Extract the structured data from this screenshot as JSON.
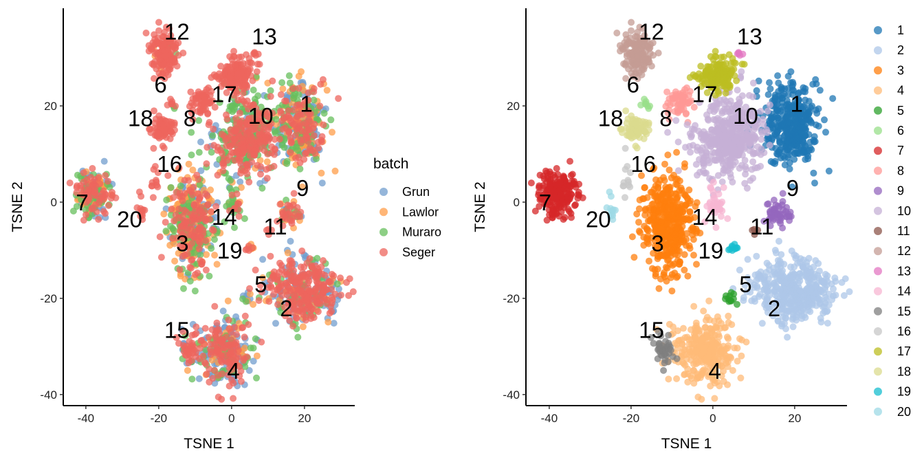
{
  "chart_data": [
    {
      "type": "scatter",
      "title": "",
      "xlabel": "TSNE 1",
      "ylabel": "TSNE 2",
      "xlim": [
        -46.2,
        33.8
      ],
      "ylim": [
        -42.3,
        40.3
      ],
      "xticks": [
        -40,
        -20,
        0,
        20
      ],
      "yticks": [
        -40,
        -20,
        0,
        20
      ],
      "grid": false,
      "color_by": "batch",
      "legend": {
        "title": "batch",
        "placement": "right",
        "entries": [
          "Grun",
          "Lawlor",
          "Muraro",
          "Seger"
        ]
      }
    },
    {
      "type": "scatter",
      "title": "",
      "xlabel": "TSNE 1",
      "ylabel": "TSNE 2",
      "xlim": [
        -45.7,
        32.8
      ],
      "ylim": [
        -42.3,
        40.3
      ],
      "xticks": [
        -40,
        -20,
        0,
        20
      ],
      "yticks": [
        -40,
        -20,
        0,
        20
      ],
      "grid": false,
      "color_by": "cluster",
      "legend": {
        "title": "",
        "placement": "right",
        "entries": [
          "1",
          "2",
          "3",
          "4",
          "5",
          "6",
          "7",
          "8",
          "9",
          "10",
          "11",
          "12",
          "13",
          "14",
          "15",
          "16",
          "17",
          "18",
          "19",
          "20"
        ]
      }
    }
  ],
  "batch_colors": {
    "Grun": "#729ece",
    "Lawlor": "#ff9e4a",
    "Muraro": "#67bf5c",
    "Seger": "#ed665d"
  },
  "cluster_colors": [
    "#1f77b4",
    "#aec7e8",
    "#ff7f0e",
    "#ffbb78",
    "#2ca02c",
    "#98df8a",
    "#d62728",
    "#ff9896",
    "#9467bd",
    "#c5b0d5",
    "#8c564b",
    "#c49c94",
    "#e377c2",
    "#f7b6d2",
    "#7f7f7f",
    "#c7c7c7",
    "#bcbd22",
    "#dbdb8d",
    "#17becf",
    "#9edae5"
  ],
  "clusters": [
    {
      "id": "1",
      "center": [
        19,
        16
      ],
      "sd": [
        3.6,
        4.2
      ],
      "n": 380,
      "batch_weights": [
        0.3,
        0.25,
        0.2,
        0.25
      ],
      "label_pos": [
        20.5,
        20.5
      ]
    },
    {
      "id": "2",
      "center": [
        20,
        -18.5
      ],
      "sd": [
        5,
        3.2
      ],
      "n": 420,
      "batch_weights": [
        0.3,
        0.08,
        0.12,
        0.5
      ],
      "label_pos": [
        15,
        -22
      ]
    },
    {
      "id": "3",
      "center": [
        -11,
        -4.5
      ],
      "sd": [
        3.2,
        5
      ],
      "n": 420,
      "batch_weights": [
        0.12,
        0.4,
        0.2,
        0.28
      ],
      "label_pos": [
        -13.5,
        -8.5
      ]
    },
    {
      "id": "4",
      "center": [
        -1.5,
        -31
      ],
      "sd": [
        4,
        3.2
      ],
      "n": 300,
      "batch_weights": [
        0.3,
        0.12,
        0.13,
        0.45
      ],
      "label_pos": [
        0.5,
        -35
      ]
    },
    {
      "id": "5",
      "center": [
        4.5,
        -20
      ],
      "sd": [
        1,
        0.8
      ],
      "n": 12,
      "batch_weights": [
        0.5,
        0.1,
        0.4,
        0
      ],
      "label_pos": [
        8,
        -17
      ]
    },
    {
      "id": "6",
      "center": [
        -16,
        20.6
      ],
      "sd": [
        0.6,
        0.5
      ],
      "n": 8,
      "batch_weights": [
        0,
        0,
        0.1,
        0.9
      ],
      "label_pos": [
        -19.5,
        24.5
      ]
    },
    {
      "id": "7",
      "center": [
        -38,
        2
      ],
      "sd": [
        2.4,
        2.4
      ],
      "n": 200,
      "batch_weights": [
        0.25,
        0.25,
        0.15,
        0.35
      ],
      "label_pos": [
        -41,
        0
      ]
    },
    {
      "id": "8",
      "center": [
        -8,
        20.5
      ],
      "sd": [
        1.8,
        1.5
      ],
      "n": 60,
      "batch_weights": [
        0,
        0,
        0,
        1
      ],
      "label_pos": [
        -11.5,
        17.5
      ]
    },
    {
      "id": "9",
      "center": [
        16,
        -2.5
      ],
      "sd": [
        1.5,
        1.5
      ],
      "n": 50,
      "batch_weights": [
        0.1,
        0.1,
        0.15,
        0.65
      ],
      "label_pos": [
        19.5,
        3
      ]
    },
    {
      "id": "10",
      "center": [
        4,
        14
      ],
      "sd": [
        4.2,
        4.6
      ],
      "n": 450,
      "batch_weights": [
        0.12,
        0.05,
        0.4,
        0.43
      ],
      "label_pos": [
        8,
        18
      ]
    },
    {
      "id": "11",
      "center": [
        10.5,
        -6
      ],
      "sd": [
        0.4,
        0.4
      ],
      "n": 4,
      "batch_weights": [
        0,
        0,
        0,
        1
      ],
      "label_pos": [
        12,
        -5
      ]
    },
    {
      "id": "12",
      "center": [
        -18.5,
        31
      ],
      "sd": [
        1.7,
        2.6
      ],
      "n": 140,
      "batch_weights": [
        0,
        0.05,
        0.05,
        0.9
      ],
      "label_pos": [
        -15,
        35.5
      ]
    },
    {
      "id": "13",
      "center": [
        6.5,
        31
      ],
      "sd": [
        0.6,
        0.4
      ],
      "n": 6,
      "batch_weights": [
        0,
        0,
        0,
        1
      ],
      "label_pos": [
        9,
        34.5
      ]
    },
    {
      "id": "14",
      "center": [
        0.5,
        -1
      ],
      "sd": [
        1.2,
        2
      ],
      "n": 40,
      "batch_weights": [
        0.1,
        0.2,
        0.6,
        0.1
      ],
      "label_pos": [
        -2,
        -3
      ]
    },
    {
      "id": "15",
      "center": [
        -12,
        -30.5
      ],
      "sd": [
        1.2,
        1.6
      ],
      "n": 40,
      "batch_weights": [
        0.2,
        0.1,
        0.1,
        0.6
      ],
      "label_pos": [
        -15,
        -26.5
      ]
    },
    {
      "id": "16",
      "center": [
        -21,
        5
      ],
      "sd": [
        0.8,
        2.5
      ],
      "n": 12,
      "batch_weights": [
        0,
        0,
        0,
        1
      ],
      "label_pos": [
        -17,
        8
      ]
    },
    {
      "id": "17",
      "center": [
        1,
        26.5
      ],
      "sd": [
        2.6,
        1.8
      ],
      "n": 150,
      "batch_weights": [
        0,
        0,
        0,
        1
      ],
      "label_pos": [
        -2,
        22.5
      ]
    },
    {
      "id": "18",
      "center": [
        -19,
        15
      ],
      "sd": [
        1.6,
        1.3
      ],
      "n": 70,
      "batch_weights": [
        0,
        0,
        0,
        1
      ],
      "label_pos": [
        -25,
        17.5
      ]
    },
    {
      "id": "19",
      "center": [
        5,
        -9.5
      ],
      "sd": [
        0.5,
        0.6
      ],
      "n": 10,
      "batch_weights": [
        0,
        0.4,
        0,
        0.6
      ],
      "label_pos": [
        -0.5,
        -10
      ]
    },
    {
      "id": "20",
      "center": [
        -24.5,
        -0.5
      ],
      "sd": [
        0.7,
        2
      ],
      "n": 12,
      "batch_weights": [
        0,
        0,
        0,
        1
      ],
      "label_pos": [
        -28,
        -3.5
      ]
    }
  ]
}
